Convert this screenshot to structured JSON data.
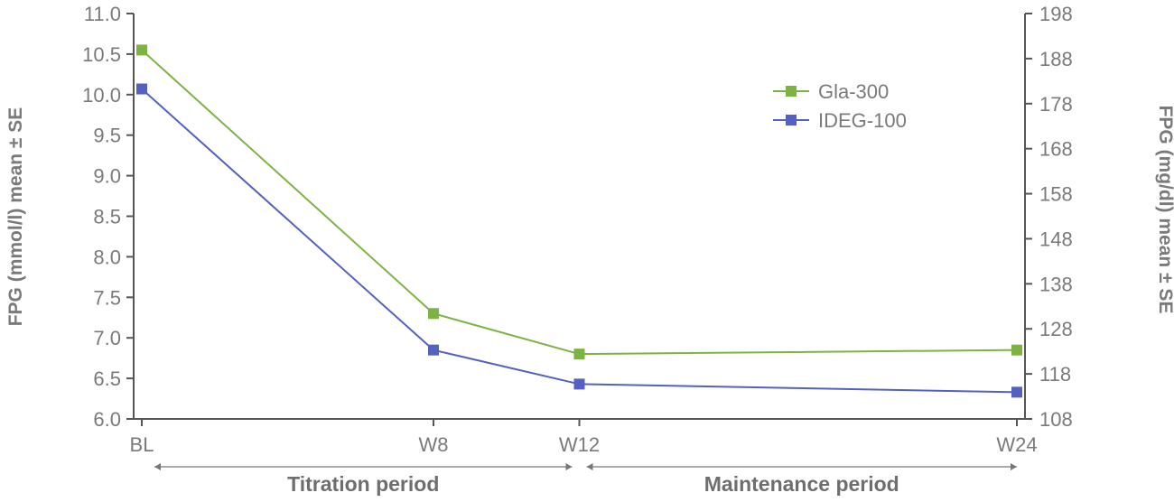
{
  "chart_data": {
    "type": "line",
    "categories": [
      "BL",
      "W8",
      "W12",
      "W24"
    ],
    "x_weeks": [
      0,
      8,
      12,
      24
    ],
    "series": [
      {
        "name": "Gla-300",
        "color": "#7cb342",
        "values": [
          10.55,
          7.3,
          6.8,
          6.85
        ]
      },
      {
        "name": "IDEG-100",
        "color": "#5461c0",
        "values": [
          10.07,
          6.85,
          6.43,
          6.33
        ]
      }
    ],
    "ylabel": "FPG (mmol/l) mean ± SE",
    "y2label": "FPG (mg/dl) mean ± SE",
    "ylim": [
      6.0,
      11.0
    ],
    "yticks": [
      "6.0",
      "6.5",
      "7.0",
      "7.5",
      "8.0",
      "8.5",
      "9.0",
      "9.5",
      "10.0",
      "10.5",
      "11.0"
    ],
    "y2lim": [
      108,
      198
    ],
    "y2ticks": [
      "108",
      "118",
      "128",
      "138",
      "148",
      "158",
      "168",
      "178",
      "188",
      "198"
    ],
    "periods": [
      {
        "label": "Titration period",
        "from": 0,
        "to": 12
      },
      {
        "label": "Maintenance period",
        "from": 12,
        "to": 24
      }
    ],
    "legend_position": "top-right",
    "grid": false
  }
}
